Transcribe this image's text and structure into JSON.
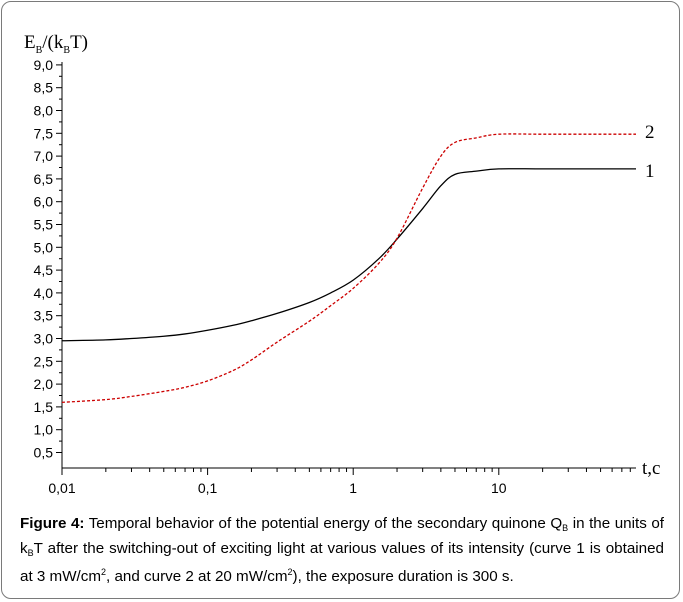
{
  "chart_data": {
    "type": "line",
    "ylabel": {
      "base": "E",
      "sub1": "B",
      "mid": "/(k",
      "sub2": "B",
      "end": "T)"
    },
    "xlabel": "t,c",
    "x_scale": "log",
    "xlim": [
      0.01,
      100
    ],
    "ylim": [
      0.25,
      9.0
    ],
    "x_ticks": [
      {
        "value": 0.01,
        "label": "0,01"
      },
      {
        "value": 0.1,
        "label": "0,1"
      },
      {
        "value": 1,
        "label": "1"
      },
      {
        "value": 10,
        "label": "10"
      }
    ],
    "y_ticks": [
      {
        "value": 0.5,
        "label": "0,5"
      },
      {
        "value": 1.0,
        "label": "1,0"
      },
      {
        "value": 1.5,
        "label": "1,5"
      },
      {
        "value": 2.0,
        "label": "2,0"
      },
      {
        "value": 2.5,
        "label": "2,5"
      },
      {
        "value": 3.0,
        "label": "3,0"
      },
      {
        "value": 3.5,
        "label": "3,5"
      },
      {
        "value": 4.0,
        "label": "4,0"
      },
      {
        "value": 4.5,
        "label": "4,5"
      },
      {
        "value": 5.0,
        "label": "5,0"
      },
      {
        "value": 5.5,
        "label": "5,5"
      },
      {
        "value": 6.0,
        "label": "6,0"
      },
      {
        "value": 6.5,
        "label": "6,5"
      },
      {
        "value": 7.0,
        "label": "7,0"
      },
      {
        "value": 7.5,
        "label": "7,5"
      },
      {
        "value": 8.0,
        "label": "8,0"
      },
      {
        "value": 8.5,
        "label": "8,5"
      },
      {
        "value": 9.0,
        "label": "9,0"
      }
    ],
    "series": [
      {
        "name": "1",
        "color": "#000000",
        "dash": "solid",
        "points": [
          [
            0.01,
            2.95
          ],
          [
            0.02,
            2.97
          ],
          [
            0.03,
            3.0
          ],
          [
            0.05,
            3.05
          ],
          [
            0.07,
            3.1
          ],
          [
            0.1,
            3.18
          ],
          [
            0.15,
            3.29
          ],
          [
            0.2,
            3.39
          ],
          [
            0.3,
            3.55
          ],
          [
            0.5,
            3.79
          ],
          [
            0.7,
            4.0
          ],
          [
            1.0,
            4.28
          ],
          [
            1.5,
            4.75
          ],
          [
            2.0,
            5.18
          ],
          [
            3.0,
            5.85
          ],
          [
            4.0,
            6.35
          ],
          [
            5.0,
            6.6
          ],
          [
            7.0,
            6.67
          ],
          [
            10,
            6.72
          ],
          [
            20,
            6.72
          ],
          [
            50,
            6.72
          ],
          [
            100,
            6.72
          ]
        ]
      },
      {
        "name": "2",
        "color": "#cc0000",
        "dash": "dashed",
        "points": [
          [
            0.01,
            1.6
          ],
          [
            0.02,
            1.66
          ],
          [
            0.03,
            1.73
          ],
          [
            0.05,
            1.84
          ],
          [
            0.07,
            1.93
          ],
          [
            0.1,
            2.07
          ],
          [
            0.15,
            2.3
          ],
          [
            0.2,
            2.53
          ],
          [
            0.3,
            2.92
          ],
          [
            0.5,
            3.38
          ],
          [
            0.7,
            3.72
          ],
          [
            1.0,
            4.1
          ],
          [
            1.5,
            4.65
          ],
          [
            2.0,
            5.2
          ],
          [
            3.0,
            6.3
          ],
          [
            4.0,
            7.0
          ],
          [
            5.0,
            7.3
          ],
          [
            7.0,
            7.4
          ],
          [
            10,
            7.48
          ],
          [
            20,
            7.48
          ],
          [
            50,
            7.48
          ],
          [
            100,
            7.48
          ]
        ]
      }
    ]
  },
  "caption": {
    "label": "Figure 4:",
    "p1": " Temporal behavior of the potential energy of the secondary quinone Q",
    "p1_sub": "B",
    "p2": " in the units of k",
    "p2_sub": "B",
    "p3": "T after the switching-out of exciting light at various values of its intensity (curve 1 is obtained at 3 mW/cm",
    "p3_sup": "2",
    "p4": ", and curve 2 at 20 mW/cm",
    "p4_sup": "2",
    "p5": "), the exposure duration is 300 s."
  }
}
